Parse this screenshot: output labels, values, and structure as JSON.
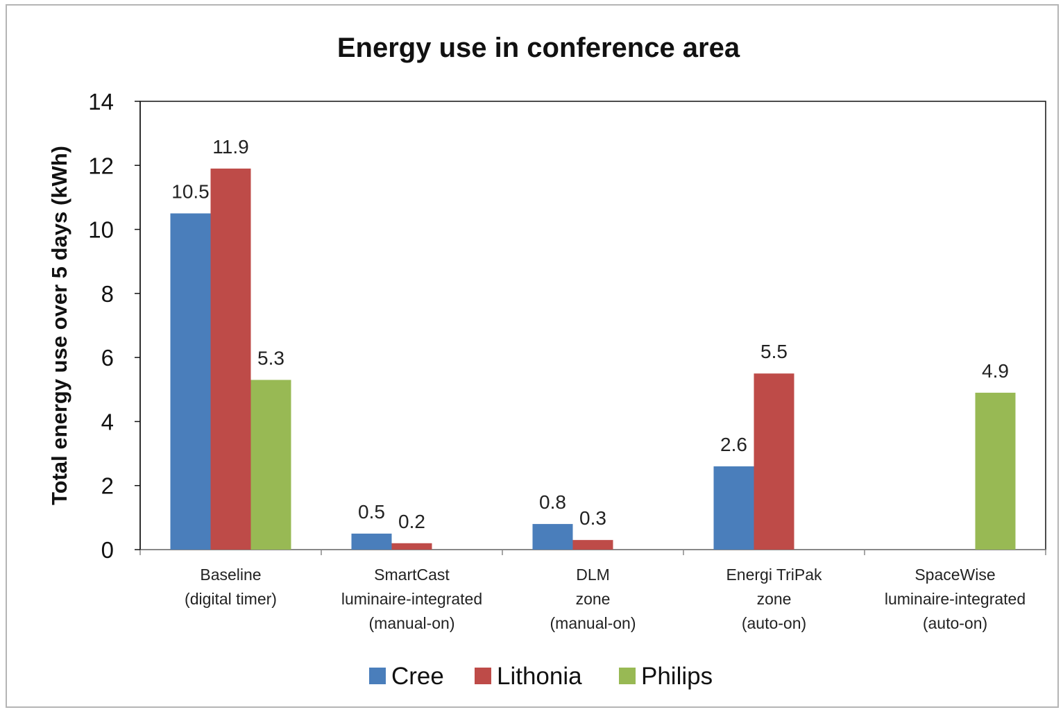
{
  "chart_data": {
    "type": "bar",
    "title": "Energy use in conference area",
    "ylabel": "Total energy use over 5 days (kWh)",
    "xlabel": "",
    "ylim": [
      0,
      14
    ],
    "yticks": [
      "0",
      "2",
      "4",
      "6",
      "8",
      "10",
      "12",
      "14"
    ],
    "categories": [
      [
        "Baseline",
        "(digital timer)"
      ],
      [
        "SmartCast",
        "luminaire-integrated",
        "(manual-on)"
      ],
      [
        "DLM",
        "zone",
        "(manual-on)"
      ],
      [
        "Energi TriPak",
        "zone",
        "(auto-on)"
      ],
      [
        "SpaceWise",
        "luminaire-integrated",
        "(auto-on)"
      ]
    ],
    "series": [
      {
        "name": "Cree",
        "color": "#4a7ebb",
        "values": [
          10.5,
          0.5,
          0.8,
          2.6,
          null
        ],
        "labels": [
          "10.5",
          "0.5",
          "0.8",
          "2.6",
          null
        ]
      },
      {
        "name": "Lithonia",
        "color": "#be4b48",
        "values": [
          11.9,
          0.2,
          0.3,
          5.5,
          null
        ],
        "labels": [
          "11.9",
          "0.2",
          "0.3",
          "5.5",
          null
        ]
      },
      {
        "name": "Philips",
        "color": "#98b954",
        "values": [
          5.3,
          null,
          null,
          null,
          4.9
        ],
        "labels": [
          "5.3",
          null,
          null,
          null,
          "4.9"
        ]
      }
    ],
    "grid": false,
    "legend_position": "bottom"
  }
}
